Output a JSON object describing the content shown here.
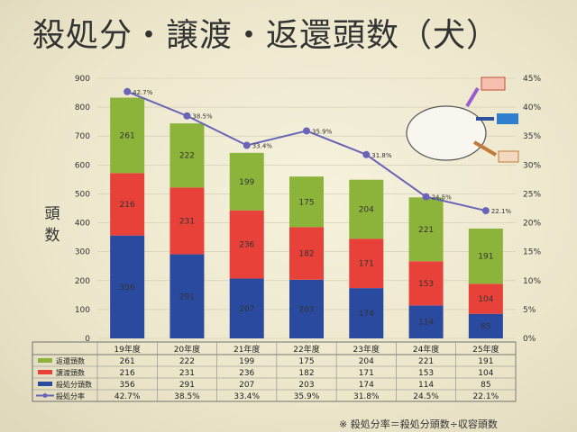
{
  "title": "殺処分・譲渡・返還頭数（犬）",
  "ylabel": "頭数",
  "footnote": "※ 殺処分率＝殺処分頭数÷収容頭数",
  "colors": {
    "return": "#8db43a",
    "transfer": "#e8413a",
    "euthanasia": "#2a4aa0",
    "rate": "#6a64b8"
  },
  "chart_data": {
    "type": "bar",
    "stacked": true,
    "categories": [
      "19年度",
      "20年度",
      "21年度",
      "22年度",
      "23年度",
      "24年度",
      "25年度"
    ],
    "series": [
      {
        "name": "殺処分頭数",
        "key": "euthanasia",
        "values": [
          356,
          291,
          207,
          203,
          174,
          114,
          85
        ]
      },
      {
        "name": "譲渡頭数",
        "key": "transfer",
        "values": [
          216,
          231,
          236,
          182,
          171,
          153,
          104
        ]
      },
      {
        "name": "返還頭数",
        "key": "return",
        "values": [
          261,
          222,
          199,
          175,
          204,
          221,
          191
        ]
      }
    ],
    "line_series": {
      "name": "殺処分率",
      "values": [
        42.7,
        38.5,
        33.4,
        35.9,
        31.8,
        24.5,
        22.1
      ],
      "labels": [
        "42.7%",
        "38.5%",
        "33.4%",
        "35.9%",
        "31.8%",
        "24.5%",
        "22.1%"
      ]
    },
    "y_left": {
      "label": "頭数",
      "range": [
        0,
        900
      ],
      "ticks": [
        0,
        100,
        200,
        300,
        400,
        500,
        600,
        700,
        800,
        900
      ]
    },
    "y_right": {
      "range": [
        0,
        45
      ],
      "ticks": [
        "0%",
        "5%",
        "10%",
        "15%",
        "20%",
        "25%",
        "30%",
        "35%",
        "40%",
        "45%"
      ]
    },
    "table": {
      "row_order": [
        "return",
        "transfer",
        "euthanasia",
        "rate"
      ],
      "row_labels": {
        "return": "返還頭数",
        "transfer": "譲渡頭数",
        "euthanasia": "殺処分頭数",
        "rate": "殺処分率"
      },
      "rows": {
        "return": [
          "261",
          "222",
          "199",
          "175",
          "204",
          "221",
          "191"
        ],
        "transfer": [
          "216",
          "231",
          "236",
          "182",
          "171",
          "153",
          "104"
        ],
        "euthanasia": [
          "356",
          "291",
          "207",
          "203",
          "174",
          "114",
          "85"
        ],
        "rate": [
          "42.7%",
          "38.5%",
          "33.4%",
          "35.9%",
          "31.8%",
          "24.5%",
          "22.1%"
        ]
      }
    }
  }
}
